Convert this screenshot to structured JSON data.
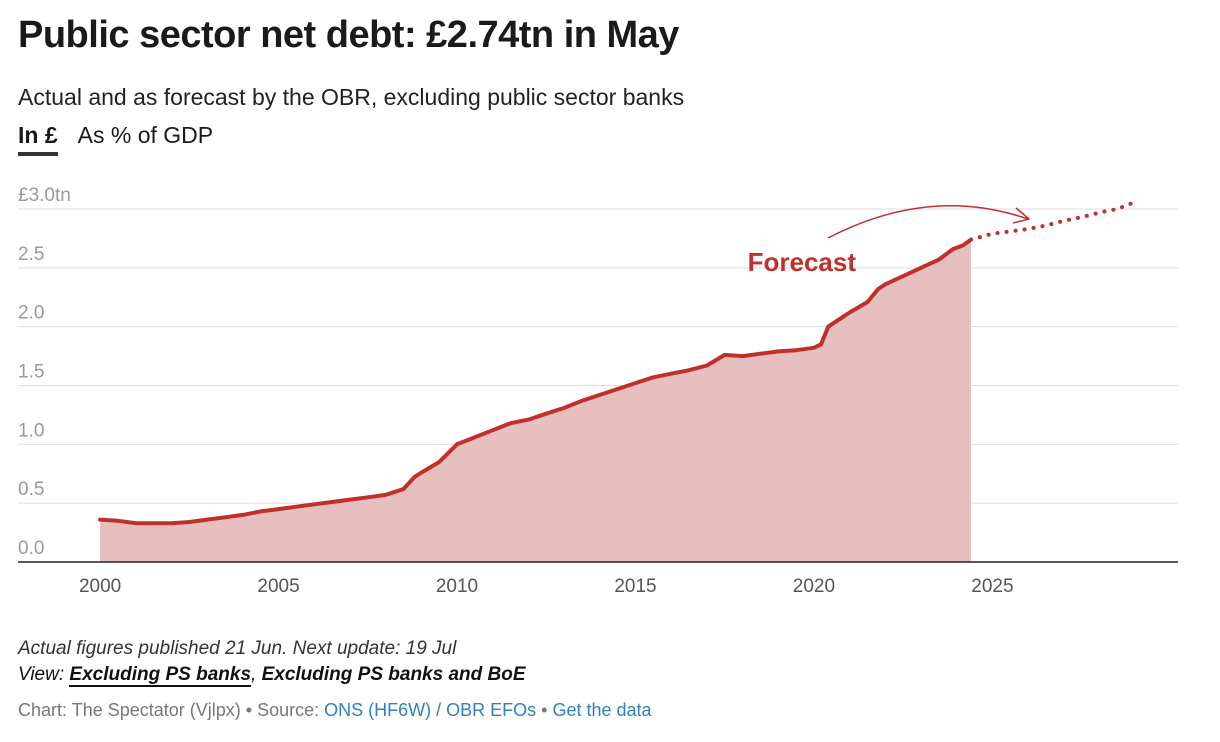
{
  "title": "Public sector net debt: £2.74tn in May",
  "subtitle": "Actual and as forecast by the OBR, excluding public sector banks",
  "tabs": [
    {
      "label": "In £",
      "active": true
    },
    {
      "label": "As % of GDP",
      "active": false
    }
  ],
  "footer": {
    "notes": "Actual figures published 21 Jun. Next update: 19 Jul",
    "view_prefix": "View: ",
    "view_options": [
      "Excluding PS banks",
      "Excluding PS banks and BoE"
    ],
    "view_separator": ", ",
    "credit_text": "Chart: The Spectator (Vjlpx) • Source: ",
    "source_link": "ONS (HF6W) / OBR EFOs",
    "separator": " • ",
    "data_link": "Get the data"
  },
  "colors": {
    "line": "#c0302b",
    "area": "#e8bfbf",
    "grid": "#dddddd",
    "axis_text": "#999999",
    "tick_text": "#555555"
  },
  "chart_data": {
    "type": "area",
    "annotation": "Forecast",
    "y_tick_labels": [
      "0.0",
      "0.5",
      "1.0",
      "1.5",
      "2.0",
      "2.5",
      "£3.0tn"
    ],
    "y_ticks": [
      0,
      0.5,
      1.0,
      1.5,
      2.0,
      2.5,
      3.0
    ],
    "ylim": [
      0,
      3.0
    ],
    "xlim": [
      1997.7,
      2030.2
    ],
    "x_ticks": [
      2000,
      2005,
      2010,
      2015,
      2020,
      2025
    ],
    "x_tick_labels": [
      "2000",
      "2005",
      "2010",
      "2015",
      "2020",
      "2025"
    ],
    "series": [
      {
        "name": "Actual",
        "points": [
          [
            2000.0,
            0.36
          ],
          [
            2000.5,
            0.35
          ],
          [
            2001.0,
            0.33
          ],
          [
            2001.5,
            0.33
          ],
          [
            2002.0,
            0.33
          ],
          [
            2002.5,
            0.34
          ],
          [
            2003.0,
            0.36
          ],
          [
            2003.5,
            0.38
          ],
          [
            2004.0,
            0.4
          ],
          [
            2004.5,
            0.43
          ],
          [
            2005.0,
            0.45
          ],
          [
            2005.5,
            0.47
          ],
          [
            2006.0,
            0.49
          ],
          [
            2006.5,
            0.51
          ],
          [
            2007.0,
            0.53
          ],
          [
            2007.5,
            0.55
          ],
          [
            2008.0,
            0.57
          ],
          [
            2008.5,
            0.62
          ],
          [
            2008.8,
            0.72
          ],
          [
            2009.0,
            0.76
          ],
          [
            2009.5,
            0.85
          ],
          [
            2010.0,
            1.0
          ],
          [
            2010.5,
            1.06
          ],
          [
            2011.0,
            1.12
          ],
          [
            2011.5,
            1.18
          ],
          [
            2012.0,
            1.21
          ],
          [
            2012.5,
            1.26
          ],
          [
            2013.0,
            1.31
          ],
          [
            2013.5,
            1.37
          ],
          [
            2014.0,
            1.42
          ],
          [
            2014.5,
            1.47
          ],
          [
            2015.0,
            1.52
          ],
          [
            2015.5,
            1.57
          ],
          [
            2016.0,
            1.6
          ],
          [
            2016.5,
            1.63
          ],
          [
            2017.0,
            1.67
          ],
          [
            2017.5,
            1.76
          ],
          [
            2018.0,
            1.75
          ],
          [
            2018.5,
            1.77
          ],
          [
            2019.0,
            1.79
          ],
          [
            2019.5,
            1.8
          ],
          [
            2020.0,
            1.82
          ],
          [
            2020.2,
            1.85
          ],
          [
            2020.4,
            2.0
          ],
          [
            2020.7,
            2.06
          ],
          [
            2021.0,
            2.12
          ],
          [
            2021.5,
            2.21
          ],
          [
            2021.8,
            2.32
          ],
          [
            2022.0,
            2.36
          ],
          [
            2022.5,
            2.43
          ],
          [
            2023.0,
            2.5
          ],
          [
            2023.5,
            2.57
          ],
          [
            2023.9,
            2.66
          ],
          [
            2024.17,
            2.69
          ],
          [
            2024.4,
            2.74
          ]
        ]
      },
      {
        "name": "Forecast",
        "points": [
          [
            2024.4,
            2.74
          ],
          [
            2025.0,
            2.79
          ],
          [
            2025.5,
            2.81
          ],
          [
            2026.0,
            2.83
          ],
          [
            2026.5,
            2.86
          ],
          [
            2027.0,
            2.9
          ],
          [
            2027.5,
            2.93
          ],
          [
            2028.0,
            2.97
          ],
          [
            2028.5,
            3.0
          ],
          [
            2029.0,
            3.06
          ]
        ]
      }
    ]
  }
}
